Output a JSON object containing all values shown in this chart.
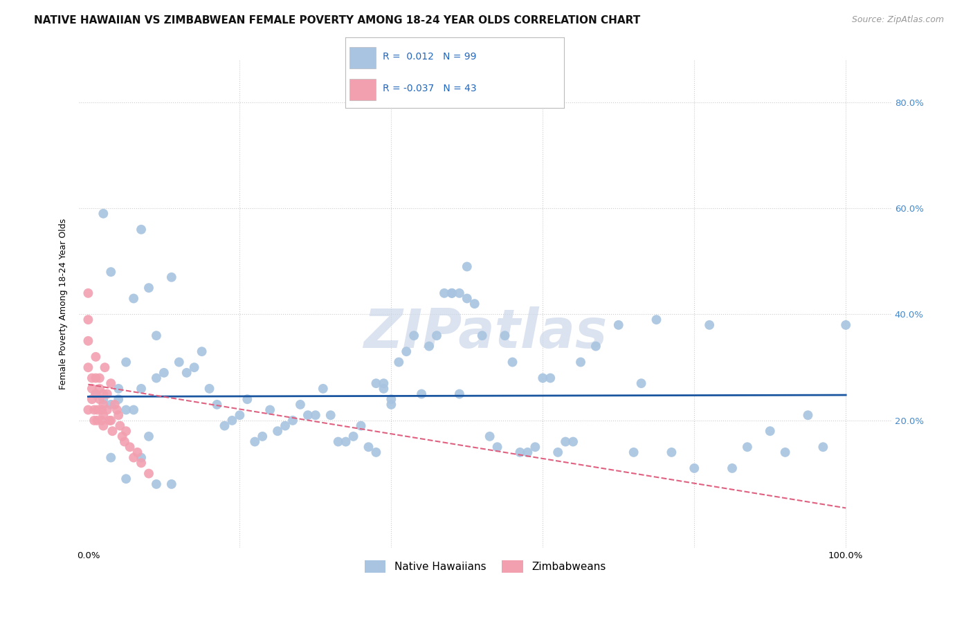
{
  "title": "NATIVE HAWAIIAN VS ZIMBABWEAN FEMALE POVERTY AMONG 18-24 YEAR OLDS CORRELATION CHART",
  "source": "Source: ZipAtlas.com",
  "ylabel": "Female Poverty Among 18-24 Year Olds",
  "xlim": [
    -0.012,
    1.06
  ],
  "ylim": [
    -0.04,
    0.88
  ],
  "r_blue": 0.012,
  "n_blue": 99,
  "r_pink": -0.037,
  "n_pink": 43,
  "blue_color": "#a8c4e0",
  "pink_color": "#f2a0b0",
  "blue_line_color": "#1a55a0",
  "pink_line_color": "#e06080",
  "legend_blue_label": "Native Hawaiians",
  "legend_pink_label": "Zimbabweans",
  "watermark": "ZIPatlas",
  "blue_x": [
    0.01,
    0.02,
    0.02,
    0.03,
    0.04,
    0.05,
    0.06,
    0.07,
    0.08,
    0.09,
    0.1,
    0.11,
    0.12,
    0.13,
    0.14,
    0.15,
    0.16,
    0.17,
    0.18,
    0.19,
    0.2,
    0.21,
    0.22,
    0.23,
    0.24,
    0.25,
    0.26,
    0.27,
    0.28,
    0.29,
    0.3,
    0.31,
    0.32,
    0.33,
    0.34,
    0.35,
    0.36,
    0.37,
    0.38,
    0.39,
    0.4,
    0.41,
    0.42,
    0.43,
    0.44,
    0.45,
    0.46,
    0.47,
    0.48,
    0.49,
    0.5,
    0.51,
    0.52,
    0.53,
    0.54,
    0.55,
    0.56,
    0.57,
    0.58,
    0.59,
    0.6,
    0.61,
    0.62,
    0.63,
    0.64,
    0.65,
    0.67,
    0.7,
    0.72,
    0.73,
    0.75,
    0.77,
    0.8,
    0.82,
    0.85,
    0.87,
    0.9,
    0.92,
    0.95,
    0.97,
    1.0,
    0.48,
    0.49,
    0.5,
    0.38,
    0.39,
    0.4,
    0.03,
    0.04,
    0.05,
    0.06,
    0.07,
    0.08,
    0.09,
    0.03,
    0.05,
    0.07,
    0.09,
    0.11
  ],
  "blue_y": [
    0.25,
    0.59,
    0.24,
    0.48,
    0.26,
    0.31,
    0.43,
    0.56,
    0.45,
    0.28,
    0.29,
    0.47,
    0.31,
    0.29,
    0.3,
    0.33,
    0.26,
    0.23,
    0.19,
    0.2,
    0.21,
    0.24,
    0.16,
    0.17,
    0.22,
    0.18,
    0.19,
    0.2,
    0.23,
    0.21,
    0.21,
    0.26,
    0.21,
    0.16,
    0.16,
    0.17,
    0.19,
    0.15,
    0.14,
    0.26,
    0.23,
    0.31,
    0.33,
    0.36,
    0.25,
    0.34,
    0.36,
    0.44,
    0.44,
    0.25,
    0.49,
    0.42,
    0.36,
    0.17,
    0.15,
    0.36,
    0.31,
    0.14,
    0.14,
    0.15,
    0.28,
    0.28,
    0.14,
    0.16,
    0.16,
    0.31,
    0.34,
    0.38,
    0.14,
    0.27,
    0.39,
    0.14,
    0.11,
    0.38,
    0.11,
    0.15,
    0.18,
    0.14,
    0.21,
    0.15,
    0.38,
    0.44,
    0.44,
    0.43,
    0.27,
    0.27,
    0.24,
    0.23,
    0.24,
    0.22,
    0.22,
    0.26,
    0.17,
    0.36,
    0.13,
    0.09,
    0.13,
    0.08,
    0.08
  ],
  "pink_x": [
    0.0,
    0.0,
    0.0,
    0.0,
    0.0,
    0.005,
    0.005,
    0.005,
    0.008,
    0.008,
    0.01,
    0.01,
    0.01,
    0.012,
    0.012,
    0.015,
    0.015,
    0.015,
    0.018,
    0.018,
    0.02,
    0.02,
    0.02,
    0.02,
    0.022,
    0.025,
    0.025,
    0.028,
    0.03,
    0.03,
    0.032,
    0.035,
    0.038,
    0.04,
    0.042,
    0.045,
    0.048,
    0.05,
    0.055,
    0.06,
    0.065,
    0.07,
    0.08
  ],
  "pink_y": [
    0.44,
    0.39,
    0.35,
    0.3,
    0.22,
    0.28,
    0.26,
    0.24,
    0.22,
    0.2,
    0.32,
    0.28,
    0.25,
    0.22,
    0.2,
    0.28,
    0.26,
    0.24,
    0.22,
    0.2,
    0.25,
    0.23,
    0.21,
    0.19,
    0.3,
    0.25,
    0.22,
    0.2,
    0.27,
    0.2,
    0.18,
    0.23,
    0.22,
    0.21,
    0.19,
    0.17,
    0.16,
    0.18,
    0.15,
    0.13,
    0.14,
    0.12,
    0.1
  ],
  "blue_trend_y0": 0.245,
  "blue_trend_y1": 0.248,
  "pink_trend_x0": 0.0,
  "pink_trend_x1": 1.0,
  "pink_trend_y0": 0.268,
  "pink_trend_y1": 0.035,
  "grid_color": "#cccccc",
  "background_color": "#ffffff",
  "title_fontsize": 11,
  "source_fontsize": 9,
  "axis_label_fontsize": 9,
  "tick_fontsize": 9.5,
  "legend_fontsize": 10,
  "watermark_color": "#cdd8ea",
  "watermark_fontsize": 56
}
